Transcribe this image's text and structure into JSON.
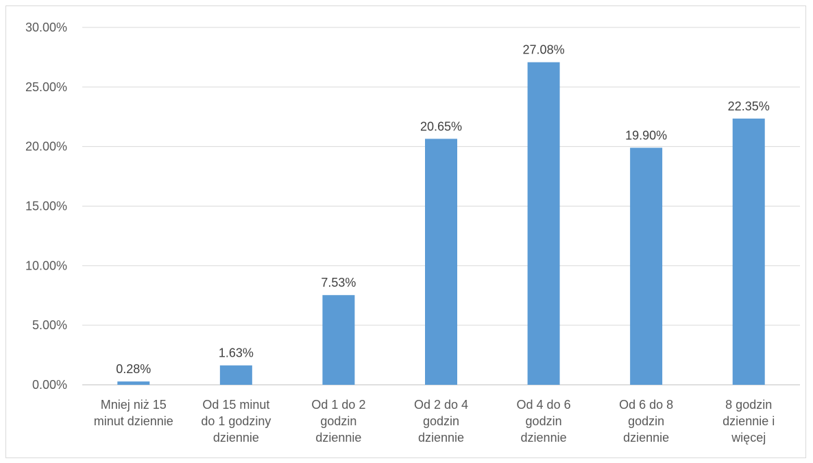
{
  "chart_data": {
    "type": "bar",
    "title": "",
    "xlabel": "",
    "ylabel": "",
    "ylim": [
      0,
      30
    ],
    "y_ticks": [
      "0.00%",
      "5.00%",
      "10.00%",
      "15.00%",
      "20.00%",
      "25.00%",
      "30.00%"
    ],
    "grid": true,
    "legend": "none",
    "bar_color": "#5b9bd5",
    "categories": [
      [
        "Mniej niż 15",
        "minut dziennie"
      ],
      [
        "Od 15 minut",
        "do 1 godziny",
        "dziennie"
      ],
      [
        "Od 1 do 2",
        "godzin",
        "dziennie"
      ],
      [
        "Od 2 do 4",
        "godzin",
        "dziennie"
      ],
      [
        "Od 4 do 6",
        "godzin",
        "dziennie"
      ],
      [
        "Od 6 do 8",
        "godzin",
        "dziennie"
      ],
      [
        "8 godzin",
        "dziennie i",
        "więcej"
      ]
    ],
    "values": [
      0.28,
      1.63,
      7.53,
      20.65,
      27.08,
      19.9,
      22.35
    ],
    "data_labels": [
      "0.28%",
      "1.63%",
      "7.53%",
      "20.65%",
      "27.08%",
      "19.90%",
      "22.35%"
    ]
  }
}
